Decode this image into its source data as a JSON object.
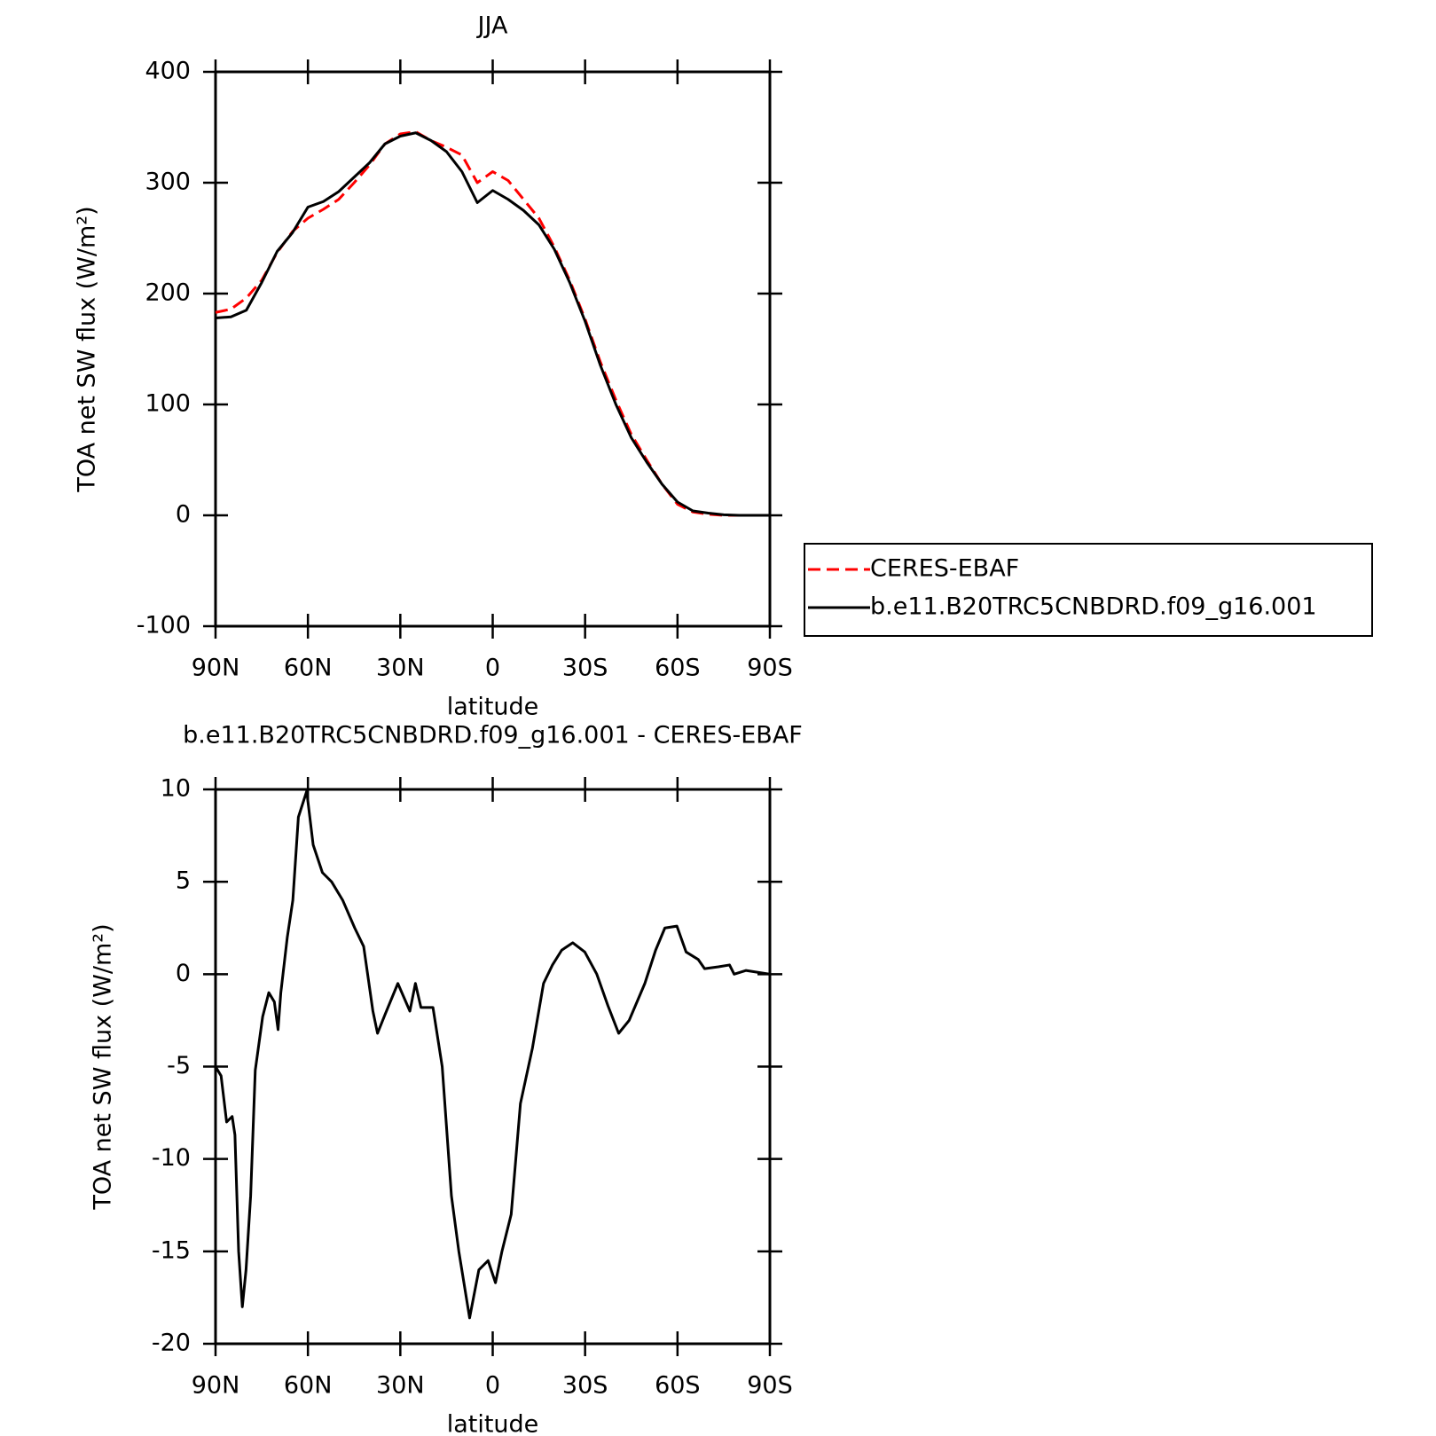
{
  "chart_data": [
    {
      "type": "line",
      "title": "JJA",
      "x": [
        90,
        85,
        80,
        75,
        70,
        65,
        60,
        55,
        50,
        45,
        40,
        35,
        30,
        25,
        20,
        15,
        10,
        5,
        0,
        -5,
        -10,
        -15,
        -20,
        -25,
        -30,
        -35,
        -40,
        -45,
        -50,
        -55,
        -60,
        -65,
        -70,
        -75,
        -80,
        -85,
        -90
      ],
      "series": [
        {
          "name": "CERES-EBAF",
          "color": "#ff0000",
          "linestyle": "dashed",
          "values": [
            183,
            186,
            196,
            212,
            237,
            256,
            268,
            276,
            285,
            300,
            316,
            335,
            344,
            346,
            338,
            332,
            325,
            300,
            310,
            302,
            285,
            268,
            242,
            212,
            177,
            138,
            104,
            73,
            50,
            28,
            10,
            3,
            1,
            0,
            0,
            0,
            0
          ]
        },
        {
          "name": "b.e11.B20TRC5CNBDRD.f09_g16.001",
          "color": "#000000",
          "linestyle": "solid",
          "values": [
            178,
            179,
            185,
            210,
            238,
            255,
            278,
            283,
            292,
            305,
            318,
            335,
            342,
            345,
            338,
            328,
            310,
            282,
            293,
            285,
            275,
            262,
            240,
            210,
            175,
            135,
            100,
            70,
            48,
            28,
            12,
            4,
            2,
            0.5,
            0,
            0,
            0
          ]
        }
      ],
      "xlim": [
        90,
        -90
      ],
      "xticks": [
        {
          "value": 90,
          "label": "90N"
        },
        {
          "value": 60,
          "label": "60N"
        },
        {
          "value": 30,
          "label": "30N"
        },
        0,
        {
          "value": -30,
          "label": "30S"
        },
        {
          "value": -60,
          "label": "60S"
        },
        {
          "value": -90,
          "label": "90S"
        }
      ],
      "ylim": [
        -100,
        400
      ],
      "yticks": [
        -100,
        0,
        100,
        200,
        300,
        400
      ],
      "xlabel": "latitude",
      "ylabel": "TOA net SW flux (W/m²)",
      "legend": "right"
    },
    {
      "type": "line",
      "title": "b.e11.B20TRC5CNBDRD.f09_g16.001 - CERES-EBAF",
      "x": [
        90,
        88.2,
        86.4,
        84.6,
        83.7,
        82.5,
        81.3,
        80.1,
        78.6,
        77.1,
        74.7,
        72.7,
        70.9,
        69.7,
        68.8,
        66.7,
        64.9,
        63.1,
        60.4,
        58.3,
        55.3,
        52.3,
        48.7,
        44.8,
        41.9,
        38.9,
        37.4,
        35,
        30.8,
        26.9,
        25.1,
        23.3,
        19.4,
        16.4,
        13.4,
        11,
        7.5,
        4.5,
        1.5,
        -0.9,
        -3,
        -6,
        -9,
        -12.9,
        -16.5,
        -19.4,
        -22.4,
        -26,
        -29.9,
        -33.8,
        -37.4,
        -40.9,
        -44.3,
        -49.4,
        -52.9,
        -55.9,
        -59.8,
        -62.8,
        -66.7,
        -68.8,
        -73.3,
        -76.9,
        -78.4,
        -82.2,
        -90
      ],
      "values": [
        -5,
        -5.5,
        -8,
        -7.7,
        -8.7,
        -15,
        -18,
        -16,
        -12,
        -5.2,
        -2.3,
        -1,
        -1.5,
        -3,
        -1,
        2,
        4,
        8.5,
        9.9,
        7,
        5.5,
        5,
        4,
        2.5,
        1.5,
        -2,
        -3.2,
        -2.2,
        -0.5,
        -2,
        -0.5,
        -1.8,
        -1.8,
        -5,
        -12,
        -15,
        -18.6,
        -16,
        -15.5,
        -16.7,
        -15,
        -13,
        -7,
        -4,
        -0.5,
        0.5,
        1.3,
        1.7,
        1.2,
        0,
        -1.7,
        -3.2,
        -2.5,
        -0.5,
        1.3,
        2.5,
        2.6,
        1.2,
        0.8,
        0.3,
        0.4,
        0.5,
        0,
        0.2,
        0
      ],
      "color": "#000000",
      "xlim": [
        90,
        -90
      ],
      "xticks": [
        {
          "value": 90,
          "label": "90N"
        },
        {
          "value": 60,
          "label": "60N"
        },
        {
          "value": 30,
          "label": "30N"
        },
        0,
        {
          "value": -30,
          "label": "30S"
        },
        {
          "value": -60,
          "label": "60S"
        },
        {
          "value": -90,
          "label": "90S"
        }
      ],
      "ylim": [
        -20,
        10
      ],
      "yticks": [
        -20,
        -15,
        -10,
        -5,
        0,
        5,
        10
      ],
      "xlabel": "latitude",
      "ylabel": "TOA net SW flux (W/m²)"
    }
  ]
}
